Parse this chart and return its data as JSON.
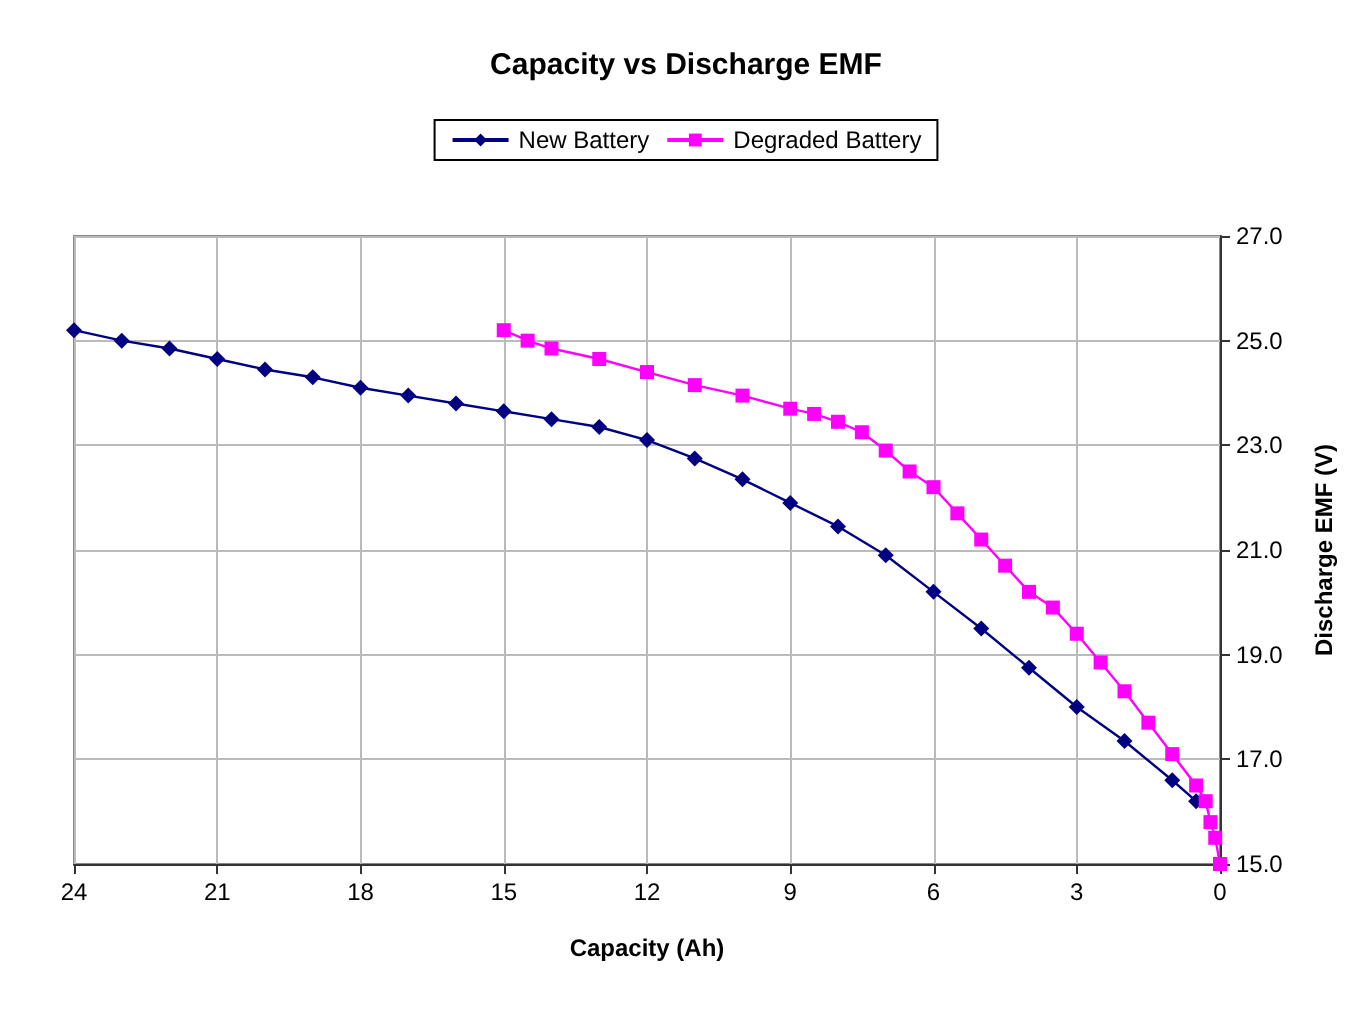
{
  "chart_data": {
    "type": "line",
    "title": "Capacity vs Discharge EMF",
    "xlabel": "Capacity (Ah)",
    "ylabel": "Discharge EMF (V)",
    "xlim": [
      24,
      0
    ],
    "xticks": [
      24,
      21,
      18,
      15,
      12,
      9,
      6,
      3,
      0
    ],
    "ylim": [
      15,
      27
    ],
    "yticks": [
      {
        "value": 15,
        "label": "15.0"
      },
      {
        "value": 17,
        "label": "17.0"
      },
      {
        "value": 19,
        "label": "19.0"
      },
      {
        "value": 21,
        "label": "21.0"
      },
      {
        "value": 23,
        "label": "23.0"
      },
      {
        "value": 25,
        "label": "25.0"
      },
      {
        "value": 27,
        "label": "27.0"
      }
    ],
    "grid": true,
    "legend": "top",
    "series": [
      {
        "name": "New Battery",
        "color": "#000080",
        "marker": "diamond",
        "x": [
          24,
          23,
          22,
          21,
          20,
          19,
          18,
          17,
          16,
          15,
          14,
          13,
          12,
          11,
          10,
          9,
          8,
          7,
          6,
          5,
          4,
          3,
          2,
          1,
          0.5
        ],
        "values": [
          25.2,
          25.0,
          24.85,
          24.65,
          24.45,
          24.3,
          24.1,
          23.95,
          23.8,
          23.65,
          23.5,
          23.35,
          23.1,
          22.75,
          22.35,
          21.9,
          21.45,
          20.9,
          20.2,
          19.5,
          18.75,
          18.0,
          17.35,
          16.6,
          16.2
        ]
      },
      {
        "name": "Degraded Battery",
        "color": "#ff00ff",
        "marker": "square",
        "x": [
          15,
          14.5,
          14,
          13,
          12,
          11,
          10,
          9,
          8.5,
          8,
          7.5,
          7,
          6.5,
          6,
          5.5,
          5,
          4.5,
          4,
          3.5,
          3,
          2.5,
          2,
          1.5,
          1,
          0.5,
          0.3,
          0.2,
          0.1,
          0
        ],
        "values": [
          25.2,
          25.0,
          24.85,
          24.65,
          24.4,
          24.15,
          23.95,
          23.7,
          23.6,
          23.45,
          23.25,
          22.9,
          22.5,
          22.2,
          21.7,
          21.2,
          20.7,
          20.2,
          19.9,
          19.4,
          18.85,
          18.3,
          17.7,
          17.1,
          16.5,
          16.2,
          15.8,
          15.5,
          15.0
        ]
      }
    ]
  }
}
